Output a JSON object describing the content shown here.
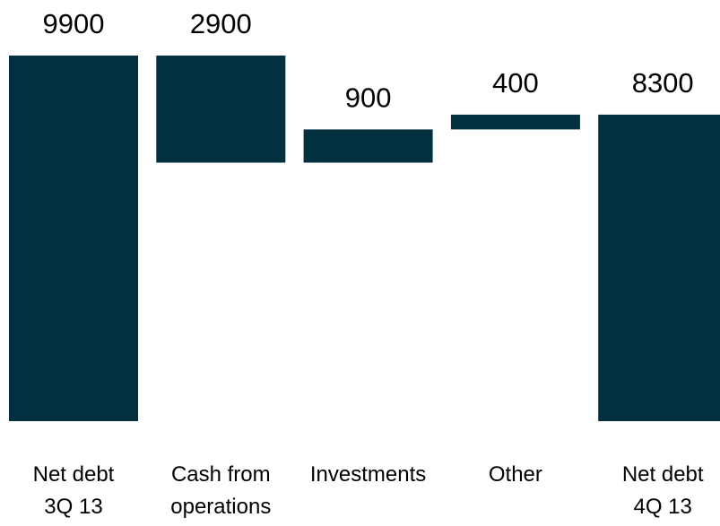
{
  "chart_data": {
    "type": "waterfall",
    "categories": [
      "Net debt\n3Q 13",
      "Cash from\noperations",
      "Investments",
      "Other",
      "Net debt\n4Q 13"
    ],
    "values": [
      9900,
      2900,
      900,
      400,
      8300
    ],
    "measure": [
      "total",
      "decrease",
      "increase",
      "increase",
      "total"
    ],
    "color": "#03303f"
  }
}
